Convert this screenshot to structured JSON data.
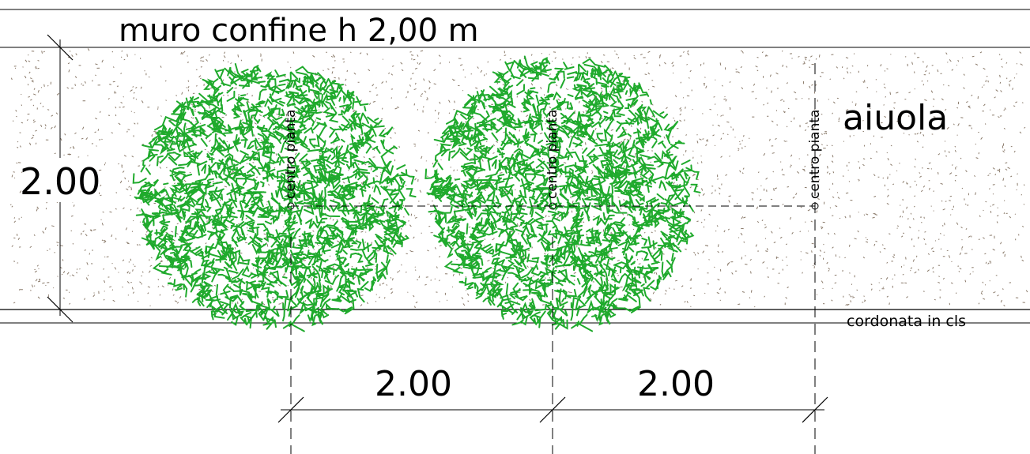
{
  "labels": {
    "wall": "muro confine h 2,00 m",
    "bed": "aiuola",
    "curb": "cordonata in cls",
    "plant_center": "centro pianta"
  },
  "dimensions": {
    "bed_width": "2.00",
    "spacing_1": "2.00",
    "spacing_2": "2.00"
  },
  "plant_centers": [
    "centro pianta",
    "centro pianta",
    "centro pianta"
  ],
  "colors": {
    "foliage": "#1faa2c",
    "gravel": "#8a7a6a",
    "line": "#000000",
    "background": "#ffffff"
  }
}
